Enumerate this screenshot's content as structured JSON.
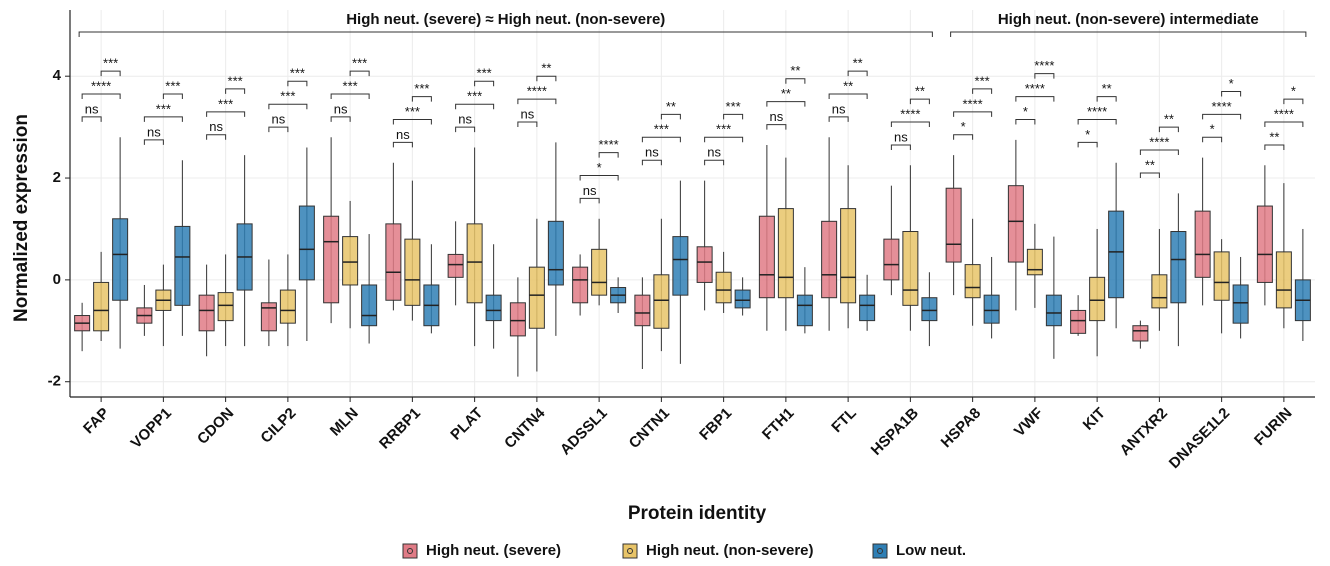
{
  "chart_data": {
    "type": "box",
    "x_label": "Protein identity",
    "y_label": "Normalized expression",
    "categories": [
      "FAP",
      "VOPP1",
      "CDON",
      "CILP2",
      "MLN",
      "RRBP1",
      "PLAT",
      "CNTN4",
      "ADSSL1",
      "CNTN1",
      "FBP1",
      "FTH1",
      "FTL",
      "HSPA1B",
      "HSPA8",
      "VWF",
      "KIT",
      "ANTXR2",
      "DNASE1L2",
      "FURIN"
    ],
    "ylim": [
      -2.3,
      5.3
    ],
    "yticks": [
      -2,
      0,
      2,
      4
    ],
    "grid": true,
    "series": [
      {
        "name": "High neut. (severe)",
        "color": "#e07b86",
        "stats": [
          [
            -1.4,
            -1.0,
            -0.85,
            -0.7,
            -0.45
          ],
          [
            -1.1,
            -0.85,
            -0.7,
            -0.55,
            -0.1
          ],
          [
            -1.5,
            -1.0,
            -0.6,
            -0.3,
            0.3
          ],
          [
            -1.3,
            -1.0,
            -0.55,
            -0.45,
            0.4
          ],
          [
            -0.85,
            -0.45,
            0.75,
            1.25,
            2.8
          ],
          [
            -0.6,
            -0.4,
            0.15,
            1.1,
            2.3
          ],
          [
            -0.5,
            0.05,
            0.3,
            0.5,
            1.15
          ],
          [
            -1.9,
            -1.1,
            -0.8,
            -0.45,
            0.05
          ],
          [
            -0.7,
            -0.45,
            0.0,
            0.25,
            0.5
          ],
          [
            -1.75,
            -0.9,
            -0.65,
            -0.3,
            0.05
          ],
          [
            -0.6,
            -0.05,
            0.35,
            0.65,
            1.95
          ],
          [
            -1.0,
            -0.35,
            0.1,
            1.25,
            2.65
          ],
          [
            -1.0,
            -0.35,
            0.1,
            1.15,
            2.8
          ],
          [
            -0.3,
            0.0,
            0.3,
            0.8,
            1.85
          ],
          [
            -0.3,
            0.35,
            0.7,
            1.8,
            2.45
          ],
          [
            -0.6,
            0.35,
            1.15,
            1.85,
            2.75
          ],
          [
            -1.1,
            -1.05,
            -0.8,
            -0.6,
            -0.3
          ],
          [
            -1.35,
            -1.2,
            -1.0,
            -0.9,
            -0.8
          ],
          [
            -0.5,
            0.05,
            0.5,
            1.35,
            2.4
          ],
          [
            -0.5,
            -0.05,
            0.5,
            1.45,
            2.25
          ]
        ]
      },
      {
        "name": "High neut. (non-severe)",
        "color": "#e8c468",
        "stats": [
          [
            -1.2,
            -1.0,
            -0.6,
            -0.05,
            0.55
          ],
          [
            -1.3,
            -0.6,
            -0.4,
            -0.2,
            0.3
          ],
          [
            -1.3,
            -0.8,
            -0.5,
            -0.25,
            0.5
          ],
          [
            -1.3,
            -0.85,
            -0.6,
            -0.2,
            0.5
          ],
          [
            -0.95,
            -0.1,
            0.35,
            0.85,
            1.55
          ],
          [
            -0.8,
            -0.5,
            0.0,
            0.8,
            1.95
          ],
          [
            -1.3,
            -0.45,
            0.35,
            1.1,
            2.6
          ],
          [
            -1.8,
            -0.95,
            -0.3,
            0.25,
            1.2
          ],
          [
            -0.5,
            -0.3,
            -0.05,
            0.6,
            1.2
          ],
          [
            -1.4,
            -0.95,
            -0.4,
            0.1,
            1.2
          ],
          [
            -0.65,
            -0.45,
            -0.2,
            0.15,
            0.55
          ],
          [
            -1.0,
            -0.35,
            0.05,
            1.4,
            2.4
          ],
          [
            -0.95,
            -0.45,
            0.05,
            1.4,
            2.25
          ],
          [
            -1.0,
            -0.5,
            -0.2,
            0.95,
            2.25
          ],
          [
            -0.9,
            -0.35,
            -0.15,
            0.3,
            1.2
          ],
          [
            -0.55,
            0.1,
            0.2,
            0.6,
            1.1
          ],
          [
            -1.5,
            -0.8,
            -0.4,
            0.05,
            1.0
          ],
          [
            -1.0,
            -0.55,
            -0.35,
            0.1,
            1.0
          ],
          [
            -1.05,
            -0.4,
            -0.05,
            0.55,
            0.8
          ],
          [
            -0.95,
            -0.55,
            -0.2,
            0.55,
            1.9
          ]
        ]
      },
      {
        "name": "Low neut.",
        "color": "#2f7fb5",
        "stats": [
          [
            -1.35,
            -0.4,
            0.5,
            1.2,
            2.8
          ],
          [
            -1.1,
            -0.5,
            0.45,
            1.05,
            2.35
          ],
          [
            -1.3,
            -0.2,
            0.45,
            1.1,
            2.45
          ],
          [
            -1.2,
            0.0,
            0.6,
            1.45,
            2.6
          ],
          [
            -1.25,
            -0.9,
            -0.7,
            -0.1,
            0.9
          ],
          [
            -1.05,
            -0.9,
            -0.5,
            -0.1,
            0.7
          ],
          [
            -1.35,
            -0.8,
            -0.6,
            -0.3,
            0.7
          ],
          [
            -1.1,
            -0.1,
            0.2,
            1.15,
            2.7
          ],
          [
            -0.65,
            -0.45,
            -0.3,
            -0.15,
            0.05
          ],
          [
            -1.65,
            -0.3,
            0.4,
            0.85,
            1.95
          ],
          [
            -0.7,
            -0.55,
            -0.4,
            -0.2,
            0.05
          ],
          [
            -1.05,
            -0.9,
            -0.5,
            -0.3,
            0.25
          ],
          [
            -1.0,
            -0.8,
            -0.5,
            -0.3,
            0.1
          ],
          [
            -1.3,
            -0.8,
            -0.6,
            -0.35,
            0.15
          ],
          [
            -1.15,
            -0.85,
            -0.6,
            -0.3,
            0.45
          ],
          [
            -1.55,
            -0.9,
            -0.65,
            -0.3,
            0.85
          ],
          [
            -0.95,
            -0.35,
            0.55,
            1.35,
            2.3
          ],
          [
            -1.3,
            -0.45,
            0.4,
            0.95,
            1.7
          ],
          [
            -1.15,
            -0.85,
            -0.45,
            -0.1,
            0.45
          ],
          [
            -1.2,
            -0.8,
            -0.4,
            0.0,
            1.0
          ]
        ]
      }
    ],
    "significance": [
      [
        "ns",
        "****",
        "***"
      ],
      [
        "ns",
        "***",
        "***"
      ],
      [
        "ns",
        "***",
        "***"
      ],
      [
        "ns",
        "***",
        "***"
      ],
      [
        "ns",
        "***",
        "***"
      ],
      [
        "ns",
        "***",
        "***"
      ],
      [
        "ns",
        "***",
        "***"
      ],
      [
        "ns",
        "****",
        "**"
      ],
      [
        "ns",
        "*",
        "****"
      ],
      [
        "ns",
        "***",
        "**"
      ],
      [
        "ns",
        "***",
        "***"
      ],
      [
        "ns",
        "**",
        "**"
      ],
      [
        "ns",
        "**",
        "**"
      ],
      [
        "ns",
        "****",
        "**"
      ],
      [
        "*",
        "****",
        "***"
      ],
      [
        "*",
        "****",
        "****"
      ],
      [
        "*",
        "****",
        "**"
      ],
      [
        "**",
        "****",
        "**"
      ],
      [
        "*",
        "****",
        "*"
      ],
      [
        "**",
        "****",
        "*"
      ]
    ],
    "groups": [
      {
        "label": "High neut. (severe) ≈ High neut. (non-severe)",
        "first": "FAP",
        "last": "HSPA1B"
      },
      {
        "label": "High neut. (non-severe) intermediate",
        "first": "HSPA8",
        "last": "FURIN"
      }
    ]
  }
}
